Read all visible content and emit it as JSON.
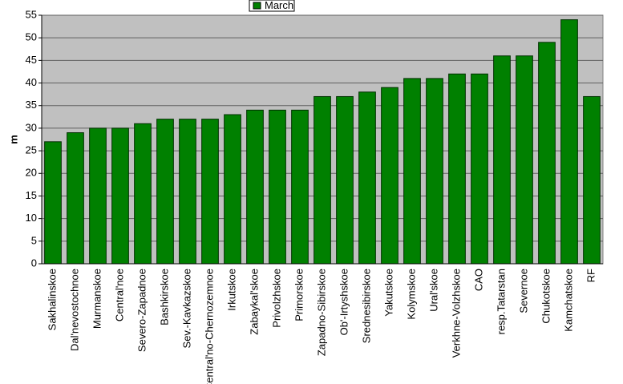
{
  "chart_data": {
    "type": "bar",
    "y_label": "m",
    "categories": [
      "Sakhalinskoe",
      "Dal'nevostochnoe",
      "Murmanskoe",
      "Central'noe",
      "Severo-Zapadnoe",
      "Bashkirskoe",
      "Sev.-Kavkazskoe",
      "Central'no-Chernozemnoe",
      "Irkutskoe",
      "Zabaykal'skoe",
      "Privolzhskoe",
      "Primorskoe",
      "Zapadno-Sibirskoe",
      "Ob'-Irtyshskoe",
      "Srednesibirskoe",
      "Yakutskoe",
      "Kolymskoe",
      "Ural'skoe",
      "Verkhne-Volzhskoe",
      "CAO",
      "resp.Tatarstan",
      "Severnoe",
      "Chukotskoe",
      "Kamchatskoe",
      "RF"
    ],
    "series": [
      {
        "name": "March",
        "color": "#008000",
        "values": [
          27,
          29,
          30,
          30,
          31,
          32,
          32,
          32,
          33,
          34,
          34,
          34,
          37,
          37,
          38,
          39,
          41,
          41,
          42,
          42,
          46,
          46,
          49,
          54,
          37
        ]
      }
    ],
    "ylim": [
      0,
      55
    ],
    "yticks": [
      0,
      5,
      10,
      15,
      20,
      25,
      30,
      35,
      40,
      45,
      50,
      55
    ],
    "grid": true
  }
}
